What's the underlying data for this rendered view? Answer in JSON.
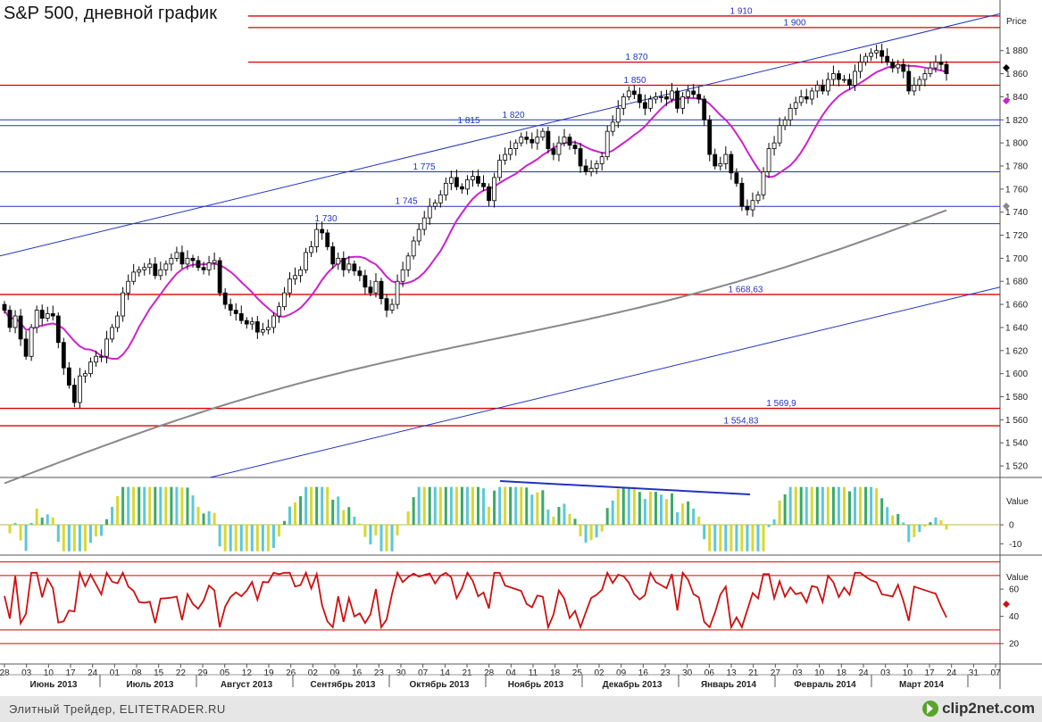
{
  "title": "S&P 500, дневной график",
  "footer": {
    "text": "Элитный Трейдер, ELITETRADER.RU",
    "logo": "clip2net.com"
  },
  "colors": {
    "up": "#ffffff",
    "down": "#000000",
    "ma_short": "#cc22cc",
    "ma_long": "#888888",
    "trend": "#2233bb",
    "level_red": "#dd0000",
    "level_blue": "#2233bb",
    "osc_yellow": "#d8d830",
    "osc_cyan": "#5bc8d8",
    "osc_green": "#3aaa66",
    "rsi": "#cc1111"
  },
  "chart_data": [
    {
      "type": "candlestick",
      "ylabel": "Price",
      "ylim": [
        1510,
        1920
      ],
      "yticks": [
        "1 520",
        "1 540",
        "1 560",
        "1 580",
        "1 600",
        "1 620",
        "1 640",
        "1 660",
        "1 680",
        "1 700",
        "1 720",
        "1 740",
        "1 760",
        "1 780",
        "1 800",
        "1 820",
        "1 840",
        "1 860",
        "1 880"
      ],
      "ytick_values": [
        1520,
        1540,
        1560,
        1580,
        1600,
        1620,
        1640,
        1660,
        1680,
        1700,
        1720,
        1740,
        1760,
        1780,
        1800,
        1820,
        1840,
        1860,
        1880
      ],
      "xticks": [
        "28",
        "03",
        "10",
        "17",
        "24",
        "01",
        "08",
        "15",
        "22",
        "29",
        "05",
        "12",
        "19",
        "26",
        "02",
        "09",
        "16",
        "23",
        "30",
        "07",
        "14",
        "21",
        "28",
        "04",
        "11",
        "18",
        "25",
        "02",
        "09",
        "16",
        "23",
        "30",
        "06",
        "13",
        "21",
        "27",
        "03",
        "10",
        "18",
        "24",
        "03",
        "10",
        "17",
        "24",
        "31",
        "07"
      ],
      "months": [
        "Июнь 2013",
        "Июль 2013",
        "Август 2013",
        "Сентябрь 2013",
        "Октябрь 2013",
        "Ноябрь 2013",
        "Декабрь 2013",
        "Январь 2014",
        "Февраль 2014",
        "Март 2014"
      ],
      "closes": [
        1655,
        1640,
        1650,
        1630,
        1615,
        1640,
        1655,
        1648,
        1652,
        1650,
        1627,
        1605,
        1590,
        1575,
        1598,
        1600,
        1610,
        1615,
        1615,
        1630,
        1640,
        1650,
        1670,
        1680,
        1688,
        1690,
        1692,
        1695,
        1685,
        1690,
        1695,
        1700,
        1705,
        1695,
        1700,
        1698,
        1692,
        1690,
        1696,
        1698,
        1670,
        1660,
        1655,
        1652,
        1646,
        1643,
        1645,
        1636,
        1638,
        1640,
        1650,
        1658,
        1670,
        1682,
        1685,
        1690,
        1705,
        1710,
        1725,
        1722,
        1710,
        1695,
        1700,
        1690,
        1695,
        1689,
        1685,
        1675,
        1670,
        1680,
        1665,
        1655,
        1660,
        1680,
        1690,
        1702,
        1715,
        1725,
        1735,
        1745,
        1748,
        1755,
        1765,
        1770,
        1762,
        1760,
        1768,
        1771,
        1765,
        1762,
        1750,
        1770,
        1785,
        1790,
        1795,
        1800,
        1805,
        1803,
        1800,
        1805,
        1810,
        1795,
        1790,
        1800,
        1805,
        1798,
        1795,
        1780,
        1775,
        1778,
        1782,
        1788,
        1810,
        1818,
        1830,
        1840,
        1845,
        1842,
        1835,
        1830,
        1838,
        1840,
        1840,
        1838,
        1845,
        1830,
        1840,
        1845,
        1842,
        1838,
        1820,
        1790,
        1780,
        1782,
        1790,
        1774,
        1765,
        1745,
        1742,
        1750,
        1755,
        1775,
        1795,
        1800,
        1815,
        1820,
        1830,
        1835,
        1840,
        1838,
        1845,
        1850,
        1845,
        1855,
        1860,
        1855,
        1855,
        1850,
        1862,
        1870,
        1875,
        1878,
        1880,
        1875,
        1870,
        1865,
        1868,
        1862,
        1845,
        1850,
        1855,
        1860,
        1865,
        1870,
        1868,
        1860
      ],
      "levels": [
        {
          "value": 1910,
          "label": "1 910",
          "color": "red"
        },
        {
          "value": 1900,
          "label": "1 900",
          "color": "red"
        },
        {
          "value": 1870,
          "label": "1 870",
          "color": "red"
        },
        {
          "value": 1850,
          "label": "1 850",
          "color": "red"
        },
        {
          "value": 1820,
          "label": "1 820",
          "color": "blue"
        },
        {
          "value": 1815,
          "label": "1 815",
          "color": "blue"
        },
        {
          "value": 1775,
          "label": "1 775",
          "color": "blue"
        },
        {
          "value": 1745,
          "label": "1 745",
          "color": "blue"
        },
        {
          "value": 1730,
          "label": "1 730",
          "color": "blue"
        },
        {
          "value": 1668.63,
          "label": "1 668,63",
          "color": "red"
        },
        {
          "value": 1569.9,
          "label": "1 569,9",
          "color": "red"
        },
        {
          "value": 1554.83,
          "label": "1 554,83",
          "color": "red"
        }
      ],
      "trend_lines": [
        {
          "x0": 0,
          "y0": 1702,
          "x1": 1,
          "y1": 1912
        },
        {
          "x0": 0.21,
          "y0": 1510,
          "x1": 1,
          "y1": 1675
        }
      ],
      "ma_short": {
        "start": 1598,
        "end": 1838
      },
      "ma_long": {
        "start": 1505,
        "end": 1745
      }
    },
    {
      "type": "bar",
      "ylabel": "Value",
      "yticks": [
        "0",
        "-10"
      ],
      "ytick_values": [
        0,
        -10
      ],
      "ylim": [
        -16,
        25
      ],
      "description_series": "oscillator"
    },
    {
      "type": "line",
      "ylabel": "Value",
      "yticks": [
        "60",
        "40",
        "20"
      ],
      "ytick_values": [
        60,
        40,
        20
      ],
      "ylim": [
        5,
        85
      ],
      "levels": [
        80,
        70,
        30,
        20
      ]
    }
  ]
}
